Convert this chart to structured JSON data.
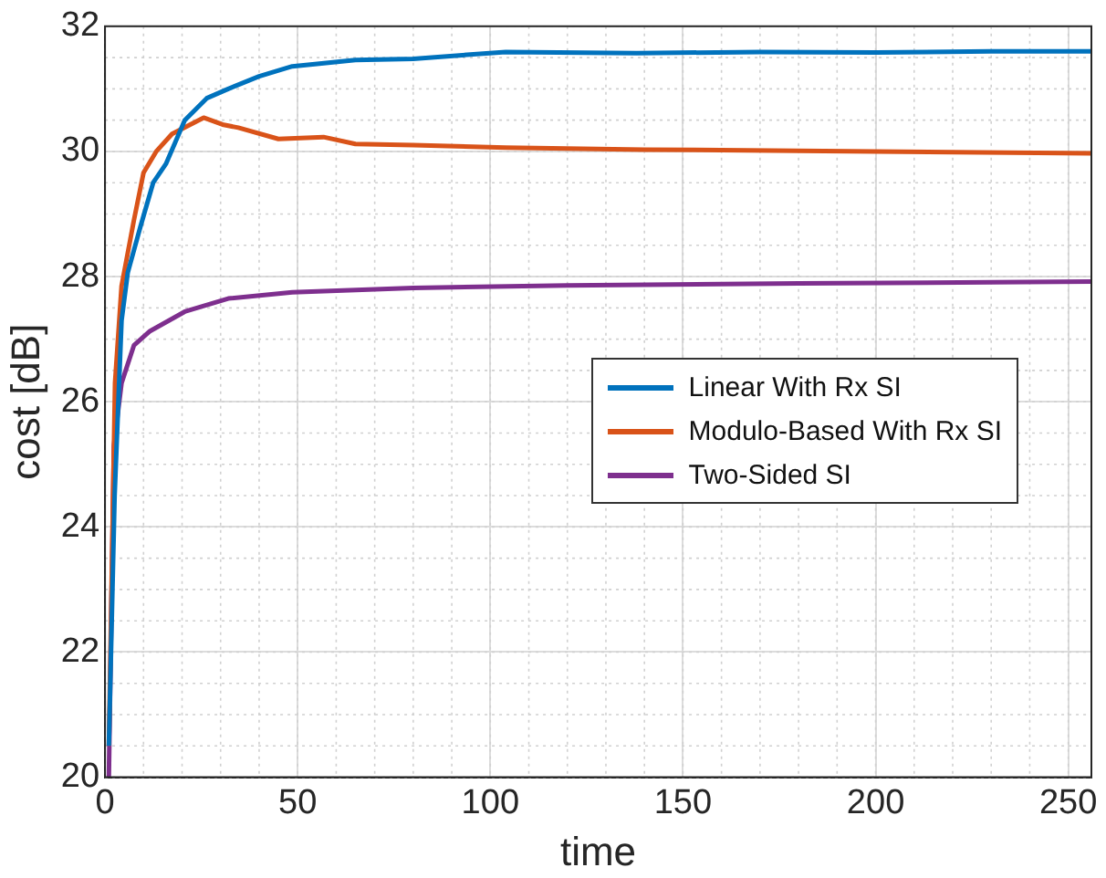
{
  "chart_data": {
    "type": "line",
    "xlabel": "time",
    "ylabel": "cost [dB]",
    "xlim": [
      0,
      256
    ],
    "ylim": [
      20,
      32
    ],
    "xticks": [
      0,
      50,
      100,
      150,
      200,
      250
    ],
    "yticks": [
      20,
      22,
      24,
      26,
      28,
      30,
      32
    ],
    "grid": true,
    "legend": "right",
    "marker": "none",
    "line_style": "solid",
    "series": [
      {
        "name": "Linear With Rx SI",
        "color": "#0072bd",
        "x": [
          1,
          2.5,
          4.3,
          5.9,
          9.2,
          12.5,
          15.8,
          20.7,
          26.4,
          32,
          40,
          48.6,
          65,
          80,
          104,
          138,
          170,
          200,
          230,
          256
        ],
        "values": [
          20.5,
          24.5,
          27.3,
          28.06,
          28.8,
          29.5,
          29.8,
          30.5,
          30.85,
          31.0,
          31.2,
          31.36,
          31.46,
          31.48,
          31.59,
          31.57,
          31.59,
          31.58,
          31.6,
          31.6
        ]
      },
      {
        "name": "Modulo-Based With Rx SI",
        "color": "#d95319",
        "x": [
          1,
          2.6,
          4.3,
          7.5,
          10,
          13.3,
          17.4,
          25.6,
          30.5,
          34.6,
          45,
          56.7,
          65,
          80,
          104,
          140,
          200,
          256
        ],
        "values": [
          20.5,
          26.3,
          27.85,
          28.9,
          29.66,
          30.0,
          30.28,
          30.54,
          30.43,
          30.38,
          30.2,
          30.23,
          30.12,
          30.1,
          30.06,
          30.03,
          30.0,
          29.97
        ]
      },
      {
        "name": "Two-Sided SI",
        "color": "#7e2f8e",
        "x": [
          1,
          2.3,
          4.3,
          7.5,
          11.7,
          20.7,
          32,
          48.6,
          80,
          120,
          180,
          256
        ],
        "values": [
          20,
          25.3,
          26.3,
          26.9,
          27.13,
          27.44,
          27.65,
          27.75,
          27.82,
          27.86,
          27.89,
          27.92
        ]
      }
    ]
  }
}
